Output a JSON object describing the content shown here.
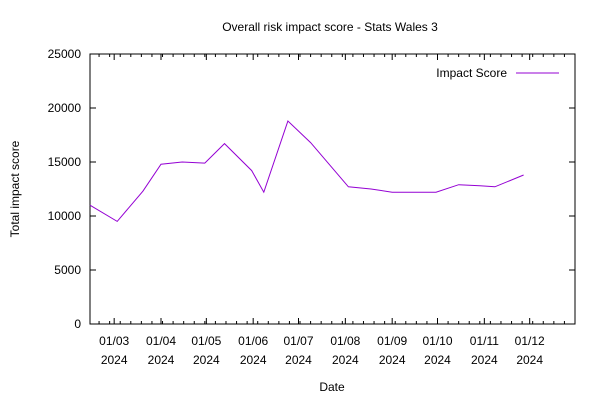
{
  "chart_data": {
    "type": "line",
    "title": "Overall risk impact score - Stats Wales 3",
    "xlabel": "Date",
    "ylabel": "Total impact score",
    "ylim": [
      0,
      25000
    ],
    "yticks": [
      0,
      5000,
      10000,
      15000,
      20000,
      25000
    ],
    "xlim": [
      "2024-02-14",
      "2024-12-31"
    ],
    "xticks": [
      {
        "date": "2024-03-01",
        "line1": "01/03",
        "line2": "2024"
      },
      {
        "date": "2024-04-01",
        "line1": "01/04",
        "line2": "2024"
      },
      {
        "date": "2024-05-01",
        "line1": "01/05",
        "line2": "2024"
      },
      {
        "date": "2024-06-01",
        "line1": "01/06",
        "line2": "2024"
      },
      {
        "date": "2024-07-01",
        "line1": "01/07",
        "line2": "2024"
      },
      {
        "date": "2024-08-01",
        "line1": "01/08",
        "line2": "2024"
      },
      {
        "date": "2024-09-01",
        "line1": "01/09",
        "line2": "2024"
      },
      {
        "date": "2024-10-01",
        "line1": "01/10",
        "line2": "2024"
      },
      {
        "date": "2024-11-01",
        "line1": "01/11",
        "line2": "2024"
      },
      {
        "date": "2024-12-01",
        "line1": "01/12",
        "line2": "2024"
      }
    ],
    "grid": false,
    "legend_position": "top-right",
    "series": [
      {
        "name": "Impact Score",
        "color": "#9400d3",
        "points": [
          {
            "x": "2024-02-14",
            "y": 11000
          },
          {
            "x": "2024-03-03",
            "y": 9500
          },
          {
            "x": "2024-03-20",
            "y": 12300
          },
          {
            "x": "2024-04-01",
            "y": 14800
          },
          {
            "x": "2024-04-15",
            "y": 15000
          },
          {
            "x": "2024-04-30",
            "y": 14900
          },
          {
            "x": "2024-05-13",
            "y": 16700
          },
          {
            "x": "2024-05-31",
            "y": 14200
          },
          {
            "x": "2024-06-08",
            "y": 12200
          },
          {
            "x": "2024-06-24",
            "y": 18800
          },
          {
            "x": "2024-07-09",
            "y": 16800
          },
          {
            "x": "2024-08-03",
            "y": 12700
          },
          {
            "x": "2024-08-18",
            "y": 12500
          },
          {
            "x": "2024-09-01",
            "y": 12200
          },
          {
            "x": "2024-09-14",
            "y": 12200
          },
          {
            "x": "2024-09-30",
            "y": 12200
          },
          {
            "x": "2024-10-15",
            "y": 12900
          },
          {
            "x": "2024-10-29",
            "y": 12800
          },
          {
            "x": "2024-11-08",
            "y": 12700
          },
          {
            "x": "2024-11-27",
            "y": 13800
          }
        ]
      }
    ]
  }
}
